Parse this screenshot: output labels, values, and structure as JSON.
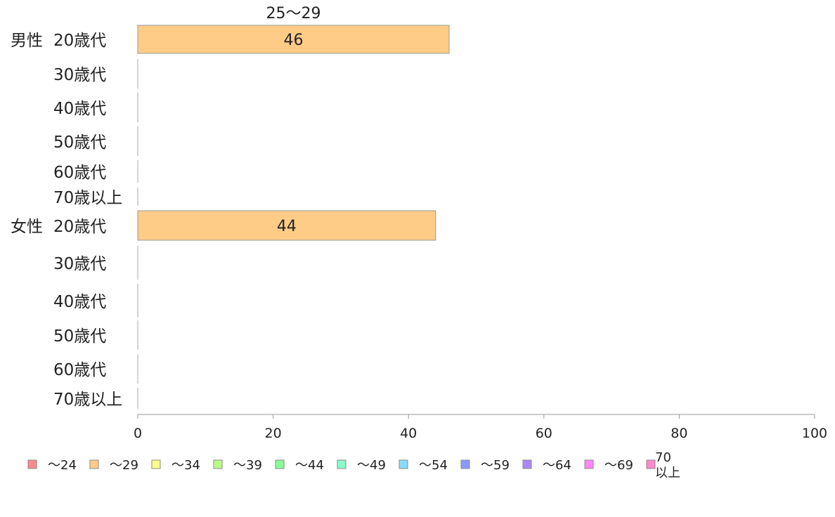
{
  "chart_data": {
    "type": "bar",
    "orientation": "horizontal",
    "stacked": true,
    "title": "",
    "xlabel": "",
    "ylabel": "",
    "xlim": [
      0,
      100
    ],
    "xticks": [
      "0",
      "20",
      "40",
      "60",
      "80",
      "100"
    ],
    "grid": false,
    "legend_position": "bottom",
    "groups": [
      {
        "label": "男性",
        "rows": [
          {
            "label": "20歳代",
            "segments": [
              {
                "series": "〜29",
                "value": 46
              }
            ]
          },
          {
            "label": "30歳代",
            "segments": []
          },
          {
            "label": "40歳代",
            "segments": []
          },
          {
            "label": "50歳代",
            "segments": []
          },
          {
            "label": "60歳代",
            "segments": []
          },
          {
            "label": "70歳以上",
            "segments": []
          }
        ]
      },
      {
        "label": "女性",
        "rows": [
          {
            "label": "20歳代",
            "segments": [
              {
                "series": "〜29",
                "value": 44
              }
            ]
          },
          {
            "label": "30歳代",
            "segments": []
          },
          {
            "label": "40歳代",
            "segments": []
          },
          {
            "label": "50歳代",
            "segments": []
          },
          {
            "label": "60歳代",
            "segments": []
          },
          {
            "label": "70歳以上",
            "segments": []
          }
        ]
      }
    ],
    "annotations": [
      {
        "text": "25〜29",
        "row": 0,
        "group": 0
      }
    ],
    "series": [
      {
        "name": "〜24",
        "color": "#ff8888"
      },
      {
        "name": "〜29",
        "color": "#ffcc88"
      },
      {
        "name": "〜34",
        "color": "#ffff88"
      },
      {
        "name": "〜39",
        "color": "#bbff88"
      },
      {
        "name": "〜44",
        "color": "#88ff99"
      },
      {
        "name": "〜49",
        "color": "#88ffcc"
      },
      {
        "name": "〜54",
        "color": "#88ddff"
      },
      {
        "name": "〜59",
        "color": "#8899ff"
      },
      {
        "name": "〜64",
        "color": "#aa88ff"
      },
      {
        "name": "〜69",
        "color": "#ff88ff"
      },
      {
        "name": "70以上",
        "color": "#ff88cc"
      }
    ]
  }
}
